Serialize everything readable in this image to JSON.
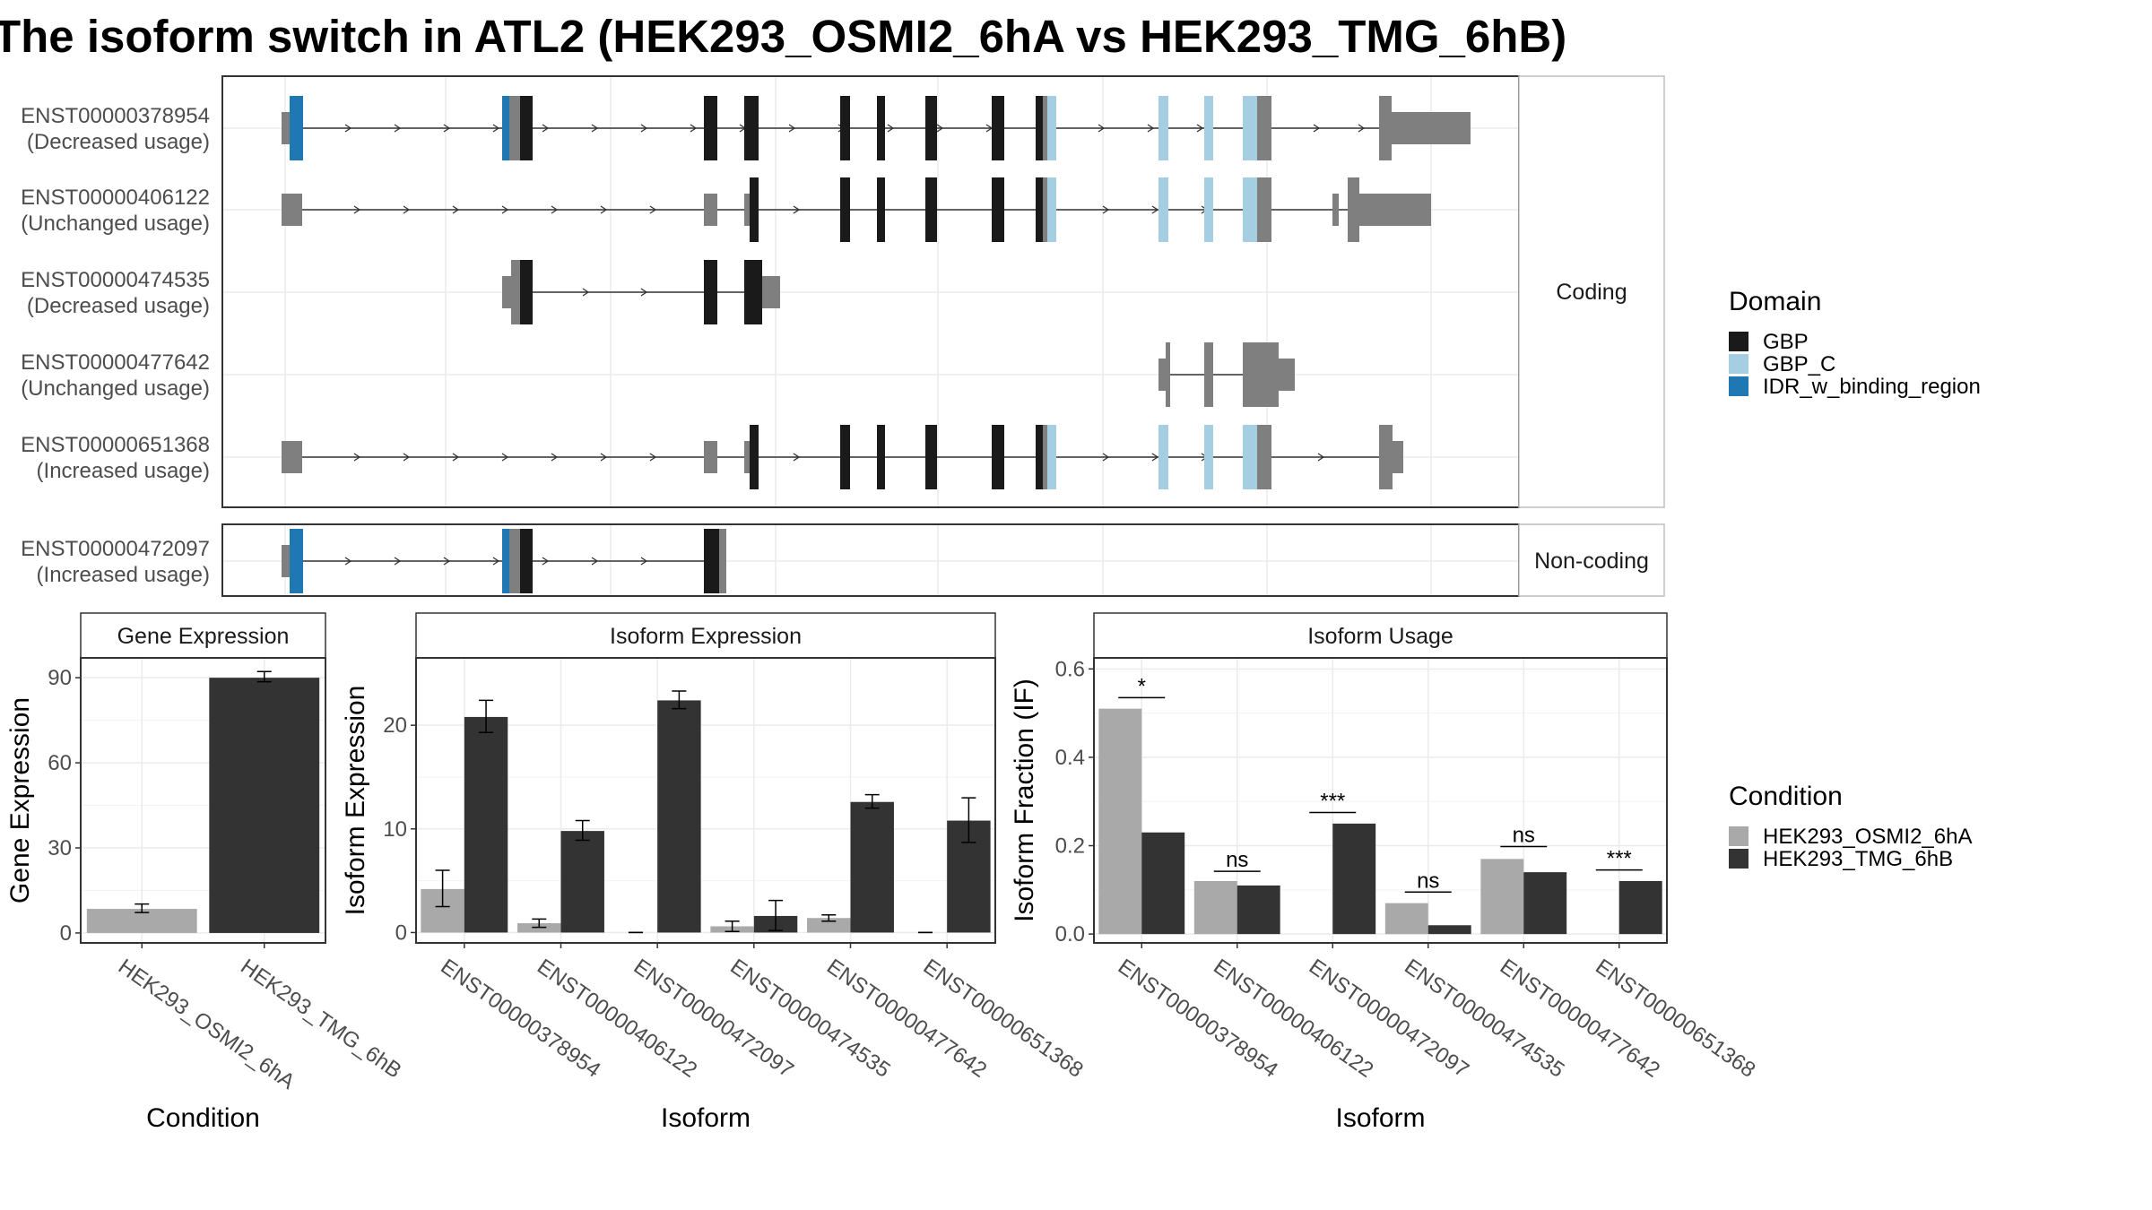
{
  "title": "The isoform switch in ATL2 (HEK293_OSMI2_6hA vs HEK293_TMG_6hB)",
  "colors": {
    "cond_a": "#a9a9a9",
    "cond_b": "#333333",
    "domain_gbp": "#1a1a1a",
    "domain_gbp_c": "#a6cee3",
    "domain_idr": "#1f78b4",
    "utr_exon": "#7f7f7f",
    "intron": "#333333",
    "panel_border": "#333333",
    "strip_border": "#bfbfbf",
    "grid": "#ebebeb"
  },
  "structure": {
    "strip_coding": "Coding",
    "strip_noncoding": "Non-coding",
    "transcripts": [
      {
        "id": "ENST00000378954",
        "status": "(Decreased usage)"
      },
      {
        "id": "ENST00000406122",
        "status": "(Unchanged usage)"
      },
      {
        "id": "ENST00000474535",
        "status": "(Decreased usage)"
      },
      {
        "id": "ENST00000477642",
        "status": "(Unchanged usage)"
      },
      {
        "id": "ENST00000651368",
        "status": "(Increased usage)"
      }
    ],
    "noncoding": [
      {
        "id": "ENST00000472097",
        "status": "(Increased usage)"
      }
    ]
  },
  "legend_domain": {
    "title": "Domain",
    "items": [
      {
        "label": "GBP",
        "color": "#1a1a1a"
      },
      {
        "label": "GBP_C",
        "color": "#a6cee3"
      },
      {
        "label": "IDR_w_binding_region",
        "color": "#1f78b4"
      }
    ]
  },
  "legend_condition": {
    "title": "Condition",
    "items": [
      {
        "label": "HEK293_OSMI2_6hA",
        "color": "#a9a9a9"
      },
      {
        "label": "HEK293_TMG_6hB",
        "color": "#333333"
      }
    ]
  },
  "chart_data": [
    {
      "type": "bar",
      "title": "Gene Expression",
      "xlabel": "Condition",
      "ylabel": "Gene Expression",
      "ylim": [
        -3.5,
        97
      ],
      "yticks": [
        0,
        30,
        60,
        90
      ],
      "categories": [
        "HEK293_OSMI2_6hA",
        "HEK293_TMG_6hB"
      ],
      "values": [
        8.5,
        90.0
      ],
      "errors": [
        [
          7.2,
          10.2
        ],
        [
          88.6,
          92.2
        ]
      ]
    },
    {
      "type": "bar",
      "title": "Isoform Expression",
      "xlabel": "Isoform",
      "ylabel": "Isoform Expression",
      "ylim": [
        -1.0,
        26.5
      ],
      "yticks": [
        0,
        10,
        20
      ],
      "categories": [
        "ENST00000378954",
        "ENST00000406122",
        "ENST00000472097",
        "ENST00000474535",
        "ENST00000477642",
        "ENST00000651368"
      ],
      "series": [
        {
          "name": "HEK293_OSMI2_6hA",
          "values": [
            4.2,
            0.9,
            0.0,
            0.6,
            1.4,
            0.0
          ],
          "errors": [
            [
              2.5,
              6.0
            ],
            [
              0.5,
              1.3
            ],
            [
              0.0,
              0.0
            ],
            [
              0.1,
              1.1
            ],
            [
              1.1,
              1.7
            ],
            [
              0.0,
              0.0
            ]
          ]
        },
        {
          "name": "HEK293_TMG_6hB",
          "values": [
            20.8,
            9.8,
            22.4,
            1.6,
            12.6,
            10.8
          ],
          "errors": [
            [
              19.3,
              22.4
            ],
            [
              8.9,
              10.8
            ],
            [
              21.6,
              23.3
            ],
            [
              0.2,
              3.1
            ],
            [
              12.0,
              13.3
            ],
            [
              8.7,
              13.0
            ]
          ]
        }
      ]
    },
    {
      "type": "bar",
      "title": "Isoform Usage",
      "xlabel": "Isoform",
      "ylabel": "Isoform Fraction (IF)",
      "ylim": [
        -0.02,
        0.625
      ],
      "yticks": [
        "0.0",
        "0.2",
        "0.4",
        "0.6"
      ],
      "categories": [
        "ENST00000378954",
        "ENST00000406122",
        "ENST00000472097",
        "ENST00000474535",
        "ENST00000477642",
        "ENST00000651368"
      ],
      "series": [
        {
          "name": "HEK293_OSMI2_6hA",
          "values": [
            0.51,
            0.12,
            0.0,
            0.07,
            0.17,
            0.0
          ]
        },
        {
          "name": "HEK293_TMG_6hB",
          "values": [
            0.23,
            0.11,
            0.25,
            0.02,
            0.14,
            0.12
          ]
        }
      ],
      "significance": [
        {
          "label": "*",
          "y": 0.535
        },
        {
          "label": "ns",
          "y": 0.142
        },
        {
          "label": "***",
          "y": 0.275
        },
        {
          "label": "ns",
          "y": 0.095
        },
        {
          "label": "ns",
          "y": 0.198
        },
        {
          "label": "***",
          "y": 0.145
        }
      ]
    }
  ]
}
